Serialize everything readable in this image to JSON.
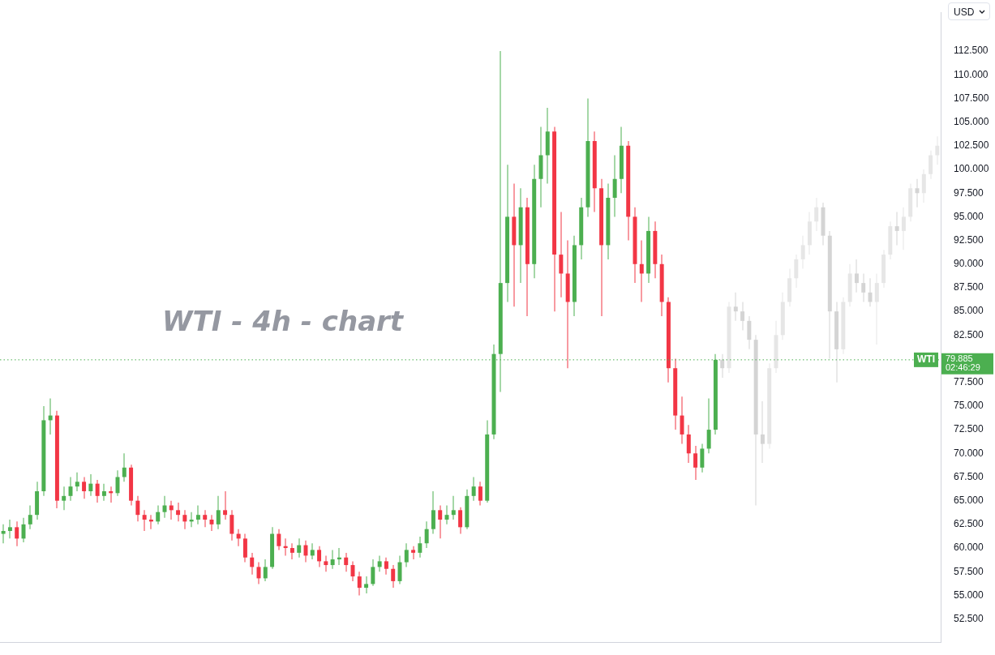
{
  "chart_data": {
    "type": "candlestick",
    "title": "WTI - 4h - chart",
    "categories": [
      null,
      null,
      null,
      null,
      null,
      null,
      null,
      null,
      null,
      null,
      null,
      null,
      null,
      null,
      null,
      null,
      null,
      null,
      null,
      null,
      null,
      null,
      null,
      null,
      null,
      null,
      null,
      null,
      null,
      null,
      null,
      null,
      null,
      null,
      null,
      null,
      null,
      null,
      null,
      null,
      null,
      null,
      null,
      null,
      null,
      null,
      null,
      null,
      null,
      null,
      null,
      null,
      null,
      null,
      null,
      null,
      null,
      null,
      null,
      null,
      null,
      null,
      null,
      null,
      null,
      null,
      null,
      null,
      null,
      null,
      null,
      null,
      null,
      null,
      null,
      null,
      null,
      null,
      null,
      null,
      null,
      null,
      null,
      null,
      null,
      null,
      null,
      null,
      null,
      null,
      null,
      null,
      null,
      null,
      null,
      null,
      null,
      null,
      null,
      null,
      null,
      null,
      null,
      null,
      null,
      null,
      null,
      null,
      null,
      null,
      null,
      null,
      null,
      null,
      null,
      null,
      null,
      null,
      null,
      null,
      null,
      null,
      null,
      null,
      null,
      null,
      null,
      null,
      null,
      null,
      null,
      null,
      null,
      null,
      null,
      null,
      null,
      null,
      null,
      null
    ],
    "series": [
      {
        "ohlc": [
          [
            61.5,
            62.5,
            60.5,
            61.8
          ],
          [
            61.8,
            63.0,
            61.0,
            62.2
          ],
          [
            62.2,
            62.8,
            60.2,
            61.0
          ],
          [
            61.0,
            63.2,
            60.6,
            62.5
          ],
          [
            62.5,
            64.5,
            62.0,
            63.5
          ],
          [
            63.5,
            67.0,
            63.0,
            66.0
          ],
          [
            66.0,
            75.0,
            65.5,
            73.5
          ],
          [
            73.5,
            75.8,
            72.0,
            74.0
          ],
          [
            74.0,
            74.5,
            64.2,
            65.0
          ],
          [
            65.0,
            66.5,
            64.0,
            65.5
          ],
          [
            65.5,
            67.5,
            65.0,
            66.5
          ],
          [
            66.5,
            68.0,
            66.0,
            67.0
          ],
          [
            67.0,
            67.5,
            65.2,
            66.0
          ],
          [
            66.0,
            67.8,
            65.5,
            66.8
          ],
          [
            66.8,
            67.2,
            64.8,
            65.5
          ],
          [
            65.5,
            66.8,
            65.0,
            66.0
          ],
          [
            66.0,
            66.5,
            64.8,
            65.8
          ],
          [
            65.8,
            68.2,
            65.5,
            67.5
          ],
          [
            67.5,
            70.0,
            67.0,
            68.5
          ],
          [
            68.5,
            68.8,
            64.5,
            65.0
          ],
          [
            65.0,
            65.5,
            62.8,
            63.5
          ],
          [
            63.5,
            64.0,
            61.8,
            63.0
          ],
          [
            63.0,
            63.5,
            62.0,
            62.8
          ],
          [
            62.8,
            64.5,
            62.5,
            63.8
          ],
          [
            63.8,
            65.5,
            63.2,
            64.5
          ],
          [
            64.5,
            65.0,
            63.0,
            64.0
          ],
          [
            64.0,
            64.8,
            62.8,
            63.5
          ],
          [
            63.5,
            64.0,
            62.0,
            62.8
          ],
          [
            62.8,
            63.8,
            62.2,
            63.0
          ],
          [
            63.0,
            64.5,
            62.5,
            63.5
          ],
          [
            63.5,
            64.0,
            62.2,
            63.0
          ],
          [
            63.0,
            63.5,
            61.8,
            62.5
          ],
          [
            62.5,
            65.5,
            62.0,
            64.0
          ],
          [
            64.0,
            66.0,
            63.0,
            63.5
          ],
          [
            63.5,
            64.0,
            60.8,
            61.5
          ],
          [
            61.5,
            62.0,
            60.2,
            61.0
          ],
          [
            61.0,
            61.5,
            58.5,
            59.0
          ],
          [
            59.0,
            59.5,
            57.2,
            58.0
          ],
          [
            58.0,
            58.5,
            56.2,
            56.8
          ],
          [
            56.8,
            58.8,
            56.5,
            58.0
          ],
          [
            58.0,
            62.2,
            57.8,
            61.5
          ],
          [
            61.5,
            62.0,
            59.8,
            60.2
          ],
          [
            60.2,
            61.0,
            59.2,
            60.0
          ],
          [
            60.0,
            60.5,
            58.8,
            59.5
          ],
          [
            59.5,
            61.0,
            59.0,
            60.3
          ],
          [
            60.3,
            60.8,
            58.5,
            59.2
          ],
          [
            59.2,
            60.5,
            58.8,
            59.8
          ],
          [
            59.8,
            60.2,
            58.0,
            58.6
          ],
          [
            58.6,
            59.2,
            57.5,
            58.2
          ],
          [
            58.2,
            59.8,
            57.8,
            58.8
          ],
          [
            58.8,
            60.0,
            58.2,
            59.0
          ],
          [
            59.0,
            59.5,
            57.5,
            58.2
          ],
          [
            58.2,
            58.6,
            56.5,
            57.0
          ],
          [
            57.0,
            57.5,
            55.0,
            55.8
          ],
          [
            55.8,
            57.0,
            55.2,
            56.2
          ],
          [
            56.2,
            58.8,
            56.0,
            58.0
          ],
          [
            58.0,
            59.2,
            57.5,
            58.6
          ],
          [
            58.6,
            59.0,
            57.2,
            57.8
          ],
          [
            57.8,
            58.2,
            55.8,
            56.5
          ],
          [
            56.5,
            59.2,
            56.2,
            58.5
          ],
          [
            58.5,
            60.5,
            58.0,
            59.8
          ],
          [
            59.8,
            60.2,
            58.8,
            59.5
          ],
          [
            59.5,
            61.2,
            59.0,
            60.5
          ],
          [
            60.5,
            62.8,
            60.0,
            62.0
          ],
          [
            62.0,
            66.0,
            61.5,
            64.0
          ],
          [
            64.0,
            64.5,
            61.0,
            63.0
          ],
          [
            63.0,
            64.5,
            62.5,
            63.5
          ],
          [
            63.5,
            65.5,
            63.0,
            64.0
          ],
          [
            64.0,
            64.3,
            61.5,
            62.2
          ],
          [
            62.2,
            66.2,
            62.0,
            65.5
          ],
          [
            65.5,
            67.5,
            65.0,
            66.5
          ],
          [
            66.5,
            67.0,
            64.5,
            65.0
          ],
          [
            65.0,
            73.5,
            64.8,
            72.0
          ],
          [
            72.0,
            81.5,
            71.5,
            80.5
          ],
          [
            80.5,
            112.5,
            76.5,
            88.0
          ],
          [
            88.0,
            100.5,
            86.0,
            95.0
          ],
          [
            95.0,
            98.5,
            85.5,
            92.0
          ],
          [
            92.0,
            98.0,
            88.0,
            96.0
          ],
          [
            96.0,
            97.0,
            84.5,
            90.0
          ],
          [
            90.0,
            100.5,
            88.5,
            99.0
          ],
          [
            99.0,
            104.5,
            96.0,
            101.5
          ],
          [
            101.5,
            106.5,
            98.5,
            104.0
          ],
          [
            104.0,
            104.5,
            85.0,
            91.0
          ],
          [
            91.0,
            95.5,
            86.5,
            89.0
          ],
          [
            89.0,
            92.5,
            79.0,
            86.0
          ],
          [
            86.0,
            93.0,
            84.5,
            92.0
          ],
          [
            92.0,
            97.0,
            90.5,
            96.0
          ],
          [
            96.0,
            107.5,
            95.0,
            103.0
          ],
          [
            103.0,
            104.0,
            95.5,
            98.0
          ],
          [
            98.0,
            99.0,
            84.5,
            92.0
          ],
          [
            92.0,
            98.5,
            90.5,
            97.0
          ],
          [
            97.0,
            101.5,
            95.0,
            99.0
          ],
          [
            99.0,
            104.5,
            97.5,
            102.5
          ],
          [
            102.5,
            103.0,
            92.5,
            95.0
          ],
          [
            95.0,
            96.0,
            88.0,
            90.0
          ],
          [
            90.0,
            92.5,
            86.0,
            89.0
          ],
          [
            89.0,
            95.0,
            88.0,
            93.5
          ],
          [
            93.5,
            94.5,
            88.5,
            90.0
          ],
          [
            90.0,
            91.0,
            84.5,
            86.0
          ],
          [
            86.0,
            86.5,
            77.5,
            79.0
          ],
          [
            79.0,
            80.0,
            72.5,
            74.0
          ],
          [
            74.0,
            76.0,
            71.0,
            72.0
          ],
          [
            72.0,
            73.0,
            69.0,
            70.0
          ],
          [
            70.0,
            70.8,
            67.2,
            68.5
          ],
          [
            68.5,
            71.0,
            68.0,
            70.5
          ],
          [
            70.5,
            75.8,
            70.0,
            72.5
          ],
          [
            72.5,
            80.5,
            72.0,
            79.885
          ],
          null,
          null,
          null,
          null,
          null,
          null,
          null,
          null,
          null,
          null,
          null,
          null,
          null,
          null,
          null,
          null,
          null,
          null,
          null,
          null,
          null,
          null,
          null,
          null,
          null,
          null,
          null,
          null,
          null,
          null,
          null,
          null,
          null
        ],
        "colors": [
          "#4caf50",
          "#4caf50",
          "#f23645",
          "#4caf50",
          "#4caf50",
          "#4caf50",
          "#4caf50",
          "#4caf50",
          "#f23645",
          "#4caf50",
          "#4caf50",
          "#4caf50",
          "#f23645",
          "#4caf50",
          "#f23645",
          "#4caf50",
          "#f23645",
          "#4caf50",
          "#4caf50",
          "#f23645",
          "#f23645",
          "#f23645",
          "#f23645",
          "#4caf50",
          "#4caf50",
          "#f23645",
          "#f23645",
          "#f23645",
          "#4caf50",
          "#4caf50",
          "#f23645",
          "#f23645",
          "#4caf50",
          "#f23645",
          "#f23645",
          "#f23645",
          "#f23645",
          "#f23645",
          "#f23645",
          "#4caf50",
          "#4caf50",
          "#f23645",
          "#f23645",
          "#f23645",
          "#4caf50",
          "#f23645",
          "#4caf50",
          "#f23645",
          "#f23645",
          "#4caf50",
          "#4caf50",
          "#f23645",
          "#f23645",
          "#f23645",
          "#4caf50",
          "#4caf50",
          "#4caf50",
          "#f23645",
          "#f23645",
          "#4caf50",
          "#4caf50",
          "#f23645",
          "#4caf50",
          "#4caf50",
          "#4caf50",
          "#f23645",
          "#4caf50",
          "#4caf50",
          "#f23645",
          "#4caf50",
          "#4caf50",
          "#f23645",
          "#4caf50",
          "#4caf50",
          "#4caf50",
          "#4caf50",
          "#f23645",
          "#4caf50",
          "#f23645",
          "#4caf50",
          "#4caf50",
          "#4caf50",
          "#f23645",
          "#f23645",
          "#f23645",
          "#4caf50",
          "#4caf50",
          "#4caf50",
          "#f23645",
          "#f23645",
          "#4caf50",
          "#4caf50",
          "#4caf50",
          "#f23645",
          "#f23645",
          "#f23645",
          "#4caf50",
          "#f23645",
          "#f23645",
          "#f23645",
          "#f23645",
          "#f23645",
          "#f23645",
          "#f23645",
          "#4caf50",
          "#4caf50",
          "#4caf50",
          null,
          null,
          null,
          null,
          null,
          null,
          null,
          null,
          null,
          null,
          null,
          null,
          null,
          null,
          null,
          null,
          null,
          null,
          null,
          null,
          null,
          null,
          null,
          null,
          null,
          null,
          null,
          null,
          null,
          null,
          null,
          null,
          null
        ]
      },
      {
        "colors": [
          null,
          null,
          null,
          null,
          null,
          null,
          null,
          null,
          null,
          null,
          null,
          null,
          null,
          null,
          null,
          null,
          null,
          null,
          null,
          null,
          null,
          null,
          null,
          null,
          null,
          null,
          null,
          null,
          null,
          null,
          null,
          null,
          null,
          null,
          null,
          null,
          null,
          null,
          null,
          null,
          null,
          null,
          null,
          null,
          null,
          null,
          null,
          null,
          null,
          null,
          null,
          null,
          null,
          null,
          null,
          null,
          null,
          null,
          null,
          null,
          null,
          null,
          null,
          null,
          null,
          null,
          null,
          null,
          null,
          null,
          null,
          null,
          null,
          null,
          null,
          null,
          null,
          null,
          null,
          null,
          null,
          null,
          null,
          null,
          null,
          null,
          null,
          null,
          null,
          null,
          null,
          null,
          null,
          null,
          null,
          null,
          null,
          null,
          null,
          null,
          null,
          null,
          null,
          null,
          null,
          null,
          null,
          "#d4d4d4",
          "#e6e6e6",
          "#d4d4d4",
          "#d4d4d4",
          "#d4d4d4",
          "#d4d4d4",
          "#d4d4d4",
          "#e6e6e6",
          "#e6e6e6",
          "#e6e6e6",
          "#e6e6e6",
          "#e6e6e6",
          "#e6e6e6",
          "#e6e6e6",
          "#e6e6e6",
          "#d4d4d4",
          "#d4d4d4",
          "#d4d4d4",
          "#e6e6e6",
          "#e6e6e6",
          "#d4d4d4",
          "#d4d4d4",
          "#d4d4d4",
          "#e6e6e6",
          "#e6e6e6",
          "#e6e6e6",
          "#d4d4d4",
          "#e6e6e6",
          "#e6e6e6",
          "#d4d4d4",
          "#e6e6e6",
          "#e6e6e6",
          "#e6e6e6"
        ],
        "ohlc": [
          null,
          null,
          null,
          null,
          null,
          null,
          null,
          null,
          null,
          null,
          null,
          null,
          null,
          null,
          null,
          null,
          null,
          null,
          null,
          null,
          null,
          null,
          null,
          null,
          null,
          null,
          null,
          null,
          null,
          null,
          null,
          null,
          null,
          null,
          null,
          null,
          null,
          null,
          null,
          null,
          null,
          null,
          null,
          null,
          null,
          null,
          null,
          null,
          null,
          null,
          null,
          null,
          null,
          null,
          null,
          null,
          null,
          null,
          null,
          null,
          null,
          null,
          null,
          null,
          null,
          null,
          null,
          null,
          null,
          null,
          null,
          null,
          null,
          null,
          null,
          null,
          null,
          null,
          null,
          null,
          null,
          null,
          null,
          null,
          null,
          null,
          null,
          null,
          null,
          null,
          null,
          null,
          null,
          null,
          null,
          null,
          null,
          null,
          null,
          null,
          null,
          null,
          null,
          null,
          null,
          null,
          null,
          [
            79.9,
            80.5,
            78.0,
            79.0
          ],
          [
            79.0,
            86.0,
            78.5,
            85.5
          ],
          [
            85.5,
            87.0,
            84.0,
            85.0
          ],
          [
            85.0,
            86.0,
            83.0,
            84.0
          ],
          [
            84.0,
            84.5,
            81.0,
            82.0
          ],
          [
            82.0,
            82.5,
            64.5,
            72.0
          ],
          [
            72.0,
            75.5,
            69.0,
            71.0
          ],
          [
            71.0,
            79.5,
            70.5,
            79.0
          ],
          [
            79.0,
            84.0,
            78.5,
            82.5
          ],
          [
            82.5,
            87.0,
            82.0,
            86.0
          ],
          [
            86.0,
            89.5,
            85.5,
            88.5
          ],
          [
            88.5,
            91.0,
            87.5,
            90.5
          ],
          [
            90.5,
            93.0,
            89.5,
            92.0
          ],
          [
            92.0,
            95.5,
            91.0,
            94.5
          ],
          [
            94.5,
            97.0,
            93.5,
            96.0
          ],
          [
            96.0,
            96.5,
            92.0,
            93.0
          ],
          [
            93.0,
            93.5,
            80.0,
            85.0
          ],
          [
            85.0,
            86.0,
            77.5,
            81.0
          ],
          [
            81.0,
            86.5,
            80.5,
            86.0
          ],
          [
            86.0,
            90.0,
            85.5,
            89.0
          ],
          [
            89.0,
            90.5,
            87.0,
            88.0
          ],
          [
            88.0,
            89.0,
            86.0,
            87.0
          ],
          [
            87.0,
            88.5,
            85.5,
            86.0
          ],
          [
            86.0,
            89.0,
            81.5,
            88.0
          ],
          [
            88.0,
            91.5,
            87.5,
            91.0
          ],
          [
            91.0,
            94.5,
            90.5,
            94.0
          ],
          [
            94.0,
            95.5,
            92.0,
            93.5
          ],
          [
            93.5,
            96.0,
            91.5,
            95.0
          ],
          [
            95.0,
            98.5,
            94.5,
            98.0
          ],
          [
            98.0,
            99.0,
            96.0,
            97.5
          ],
          [
            97.5,
            100.0,
            96.5,
            99.5
          ],
          [
            99.5,
            102.0,
            99.0,
            101.5
          ],
          [
            101.5,
            103.5,
            100.5,
            102.5
          ]
        ]
      }
    ],
    "ylim": [
      50.0,
      116.6
    ],
    "yticks": [
      {
        "value": 52.5,
        "label": "52.500"
      },
      {
        "value": 55,
        "label": "55.000"
      },
      {
        "value": 57.5,
        "label": "57.500"
      },
      {
        "value": 60,
        "label": "60.000"
      },
      {
        "value": 62.5,
        "label": "62.500"
      },
      {
        "value": 65,
        "label": "65.000"
      },
      {
        "value": 67.5,
        "label": "67.500"
      },
      {
        "value": 70,
        "label": "70.000"
      },
      {
        "value": 72.5,
        "label": "72.500"
      },
      {
        "value": 75,
        "label": "75.000"
      },
      {
        "value": 77.5,
        "label": "77.500"
      },
      {
        "value": 82.5,
        "label": "82.500"
      },
      {
        "value": 85,
        "label": "85.000"
      },
      {
        "value": 87.5,
        "label": "87.500"
      },
      {
        "value": 90,
        "label": "90.000"
      },
      {
        "value": 92.5,
        "label": "92.500"
      },
      {
        "value": 95,
        "label": "95.000"
      },
      {
        "value": 97.5,
        "label": "97.500"
      },
      {
        "value": 100,
        "label": "100.000"
      },
      {
        "value": 102.5,
        "label": "102.500"
      },
      {
        "value": 105,
        "label": "105.000"
      },
      {
        "value": 107.5,
        "label": "107.500"
      },
      {
        "value": 110,
        "label": "110.000"
      },
      {
        "value": 112.5,
        "label": "112.500"
      }
    ],
    "ref_lines": [
      {
        "axis": "y",
        "value": 79.885,
        "label": "WTI",
        "color": "#4caf50",
        "line_style": "dotted"
      }
    ],
    "annotations": [
      "79.885",
      "02:46:29",
      "USD"
    ],
    "tick_labels": "y",
    "grid": false
  }
}
